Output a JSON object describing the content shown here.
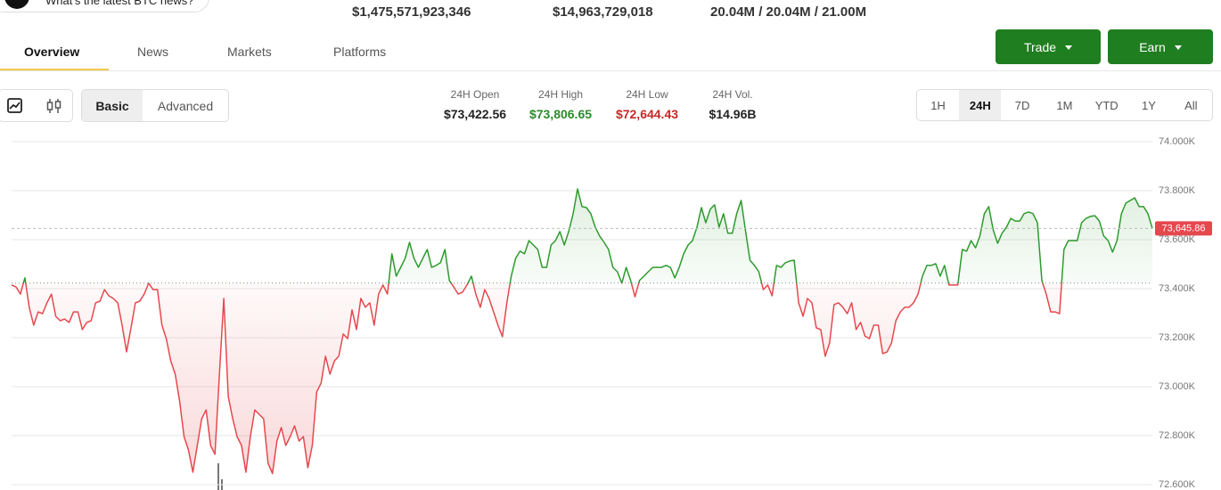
{
  "header": {
    "news_prompt": "What's the latest BTC news?",
    "stats": [
      "$1,475,571,923,346",
      "$14,963,729,018",
      "20.04M / 20.04M / 21.00M"
    ]
  },
  "tabs": [
    "Overview",
    "News",
    "Markets",
    "Platforms"
  ],
  "buttons": [
    "Trade",
    "Earn"
  ],
  "view_toggle": [
    "Basic",
    "Advanced"
  ],
  "summary": [
    {
      "label": "24H Open",
      "value": "$73,422.56"
    },
    {
      "label": "24H High",
      "value": "$73,806.65"
    },
    {
      "label": "24H Low",
      "value": "$72,644.43"
    },
    {
      "label": "24H Vol.",
      "value": "$14.96B"
    }
  ],
  "timeframes": [
    "1H",
    "24H",
    "7D",
    "1M",
    "YTD",
    "1Y",
    "All"
  ],
  "chart_data": {
    "type": "line",
    "up_color": "#2e9a2e",
    "down_color": "#e5484d",
    "baseline": 73422.56,
    "current": {
      "value": 73645.86,
      "label": "73,645.86"
    },
    "ylim": [
      72600,
      74000
    ],
    "yticks": [
      {
        "value": 72600,
        "label": "72.600K"
      },
      {
        "value": 72800,
        "label": "72.800K"
      },
      {
        "value": 73000,
        "label": "73.000K"
      },
      {
        "value": 73200,
        "label": "73.200K"
      },
      {
        "value": 73400,
        "label": "73.400K"
      },
      {
        "value": 73600,
        "label": "73.600K"
      },
      {
        "value": 73800,
        "label": "73.800K"
      },
      {
        "value": 74000,
        "label": "74.000K"
      }
    ],
    "values": [
      73415,
      73407,
      73378,
      73444,
      73324,
      73251,
      73305,
      73298,
      73342,
      73378,
      73287,
      73269,
      73276,
      73262,
      73305,
      73305,
      73233,
      73262,
      73269,
      73342,
      73349,
      73396,
      73371,
      73360,
      73342,
      73251,
      73142,
      73240,
      73342,
      73349,
      73378,
      73422,
      73396,
      73396,
      73251,
      73196,
      73105,
      73051,
      72942,
      72796,
      72742,
      72651,
      72760,
      72869,
      72905,
      72760,
      72724,
      73051,
      73360,
      72960,
      72869,
      72796,
      72760,
      72651,
      72796,
      72905,
      72887,
      72869,
      72687,
      72645,
      72778,
      72833,
      72760,
      72796,
      72840,
      72778,
      72796,
      72669,
      72760,
      72978,
      73015,
      73124,
      73051,
      73105,
      73124,
      73215,
      73196,
      73313,
      73233,
      73360,
      73324,
      73342,
      73251,
      73378,
      73415,
      73378,
      73542,
      73451,
      73487,
      73524,
      73589,
      73524,
      73487,
      73524,
      73560,
      73487,
      73495,
      73506,
      73560,
      73433,
      73407,
      73378,
      73386,
      73415,
      73451,
      73378,
      73324,
      73396,
      73360,
      73305,
      73251,
      73204,
      73342,
      73451,
      73524,
      73553,
      73542,
      73596,
      73578,
      73560,
      73487,
      73487,
      73578,
      73596,
      73633,
      73578,
      73633,
      73706,
      73807,
      73735,
      73731,
      73706,
      73651,
      73615,
      73589,
      73560,
      73487,
      73469,
      73422,
      73487,
      73433,
      73367,
      73433,
      73451,
      73469,
      73487,
      73487,
      73487,
      73495,
      73487,
      73444,
      73487,
      73542,
      73578,
      73596,
      73651,
      73731,
      73669,
      73724,
      73742,
      73651,
      73706,
      73626,
      73626,
      73706,
      73760,
      73633,
      73516,
      73495,
      73469,
      73396,
      73415,
      73371,
      73495,
      73487,
      73506,
      73513,
      73516,
      73342,
      73287,
      73360,
      73342,
      73240,
      73233,
      73124,
      73178,
      73335,
      73342,
      73324,
      73298,
      73342,
      73233,
      73262,
      73207,
      73196,
      73251,
      73251,
      73135,
      73142,
      73178,
      73269,
      73305,
      73324,
      73324,
      73342,
      73378,
      73451,
      73495,
      73495,
      73502,
      73451,
      73495,
      73415,
      73415,
      73415,
      73560,
      73553,
      73596,
      73567,
      73615,
      73706,
      73735,
      73640,
      73585,
      73626,
      73651,
      73687,
      73676,
      73676,
      73706,
      73713,
      73706,
      73669,
      73433,
      73378,
      73305,
      73305,
      73298,
      73560,
      73596,
      73596,
      73596,
      73669,
      73687,
      73695,
      73698,
      73676,
      73615,
      73596,
      73549,
      73596,
      73706,
      73749,
      73760,
      73771,
      73735,
      73735,
      73706,
      73646
    ]
  }
}
